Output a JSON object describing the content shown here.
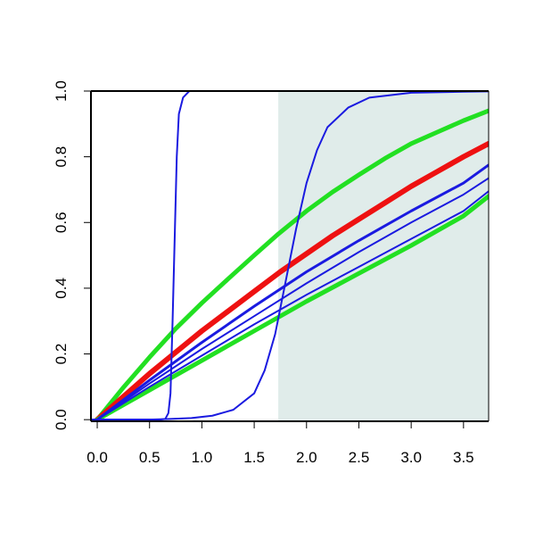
{
  "chart_data": {
    "type": "line",
    "title": "",
    "xlabel": "",
    "ylabel": "",
    "xlim": [
      -0.06,
      3.74
    ],
    "ylim": [
      -0.005,
      1.0
    ],
    "x_ticks": [
      {
        "value": 0.0,
        "label": "0.0"
      },
      {
        "value": 0.5,
        "label": "0.5"
      },
      {
        "value": 1.0,
        "label": "1.0"
      },
      {
        "value": 1.5,
        "label": "1.5"
      },
      {
        "value": 2.0,
        "label": "2.0"
      },
      {
        "value": 2.5,
        "label": "2.5"
      },
      {
        "value": 3.0,
        "label": "3.0"
      },
      {
        "value": 3.5,
        "label": "3.5"
      }
    ],
    "y_ticks": [
      {
        "value": 0.0,
        "label": "0.0"
      },
      {
        "value": 0.2,
        "label": "0.2"
      },
      {
        "value": 0.4,
        "label": "0.4"
      },
      {
        "value": 0.6,
        "label": "0.6"
      },
      {
        "value": 0.8,
        "label": "0.8"
      },
      {
        "value": 1.0,
        "label": "1.0"
      }
    ],
    "grid": false,
    "shaded_region": {
      "x_start": 1.73,
      "x_end": 3.74,
      "color": "#e0ecea"
    },
    "series": [
      {
        "color": "#22e022",
        "width": 5,
        "points": [
          [
            0.0,
            0.0
          ],
          [
            0.25,
            0.098
          ],
          [
            0.5,
            0.19
          ],
          [
            0.75,
            0.277
          ],
          [
            1.0,
            0.355
          ],
          [
            1.25,
            0.428
          ],
          [
            1.5,
            0.5
          ],
          [
            1.73,
            0.565
          ],
          [
            2.0,
            0.635
          ],
          [
            2.25,
            0.693
          ],
          [
            2.5,
            0.745
          ],
          [
            2.75,
            0.795
          ],
          [
            3.0,
            0.84
          ],
          [
            3.25,
            0.875
          ],
          [
            3.5,
            0.91
          ],
          [
            3.74,
            0.94
          ]
        ]
      },
      {
        "color": "#ee1111",
        "width": 6,
        "points": [
          [
            0.0,
            0.0
          ],
          [
            0.25,
            0.07
          ],
          [
            0.5,
            0.14
          ],
          [
            0.75,
            0.205
          ],
          [
            1.0,
            0.27
          ],
          [
            1.25,
            0.33
          ],
          [
            1.5,
            0.39
          ],
          [
            1.75,
            0.45
          ],
          [
            2.0,
            0.505
          ],
          [
            2.25,
            0.56
          ],
          [
            2.5,
            0.61
          ],
          [
            2.75,
            0.66
          ],
          [
            3.0,
            0.71
          ],
          [
            3.25,
            0.755
          ],
          [
            3.5,
            0.8
          ],
          [
            3.74,
            0.84
          ]
        ]
      },
      {
        "color": "#22e022",
        "width": 5,
        "points": [
          [
            0.0,
            0.0
          ],
          [
            0.5,
            0.09
          ],
          [
            1.0,
            0.18
          ],
          [
            1.5,
            0.27
          ],
          [
            2.0,
            0.36
          ],
          [
            2.5,
            0.445
          ],
          [
            3.0,
            0.53
          ],
          [
            3.5,
            0.62
          ],
          [
            3.74,
            0.68
          ]
        ]
      },
      {
        "color": "#1a1ae0",
        "width": 2,
        "points": [
          [
            -0.06,
            0.0
          ],
          [
            0.6,
            0.0
          ],
          [
            0.65,
            0.002
          ],
          [
            0.68,
            0.02
          ],
          [
            0.7,
            0.08
          ],
          [
            0.72,
            0.3
          ],
          [
            0.74,
            0.55
          ],
          [
            0.76,
            0.8
          ],
          [
            0.78,
            0.93
          ],
          [
            0.82,
            0.98
          ],
          [
            0.88,
            1.0
          ],
          [
            1.0,
            1.0
          ],
          [
            3.74,
            1.0
          ]
        ]
      },
      {
        "color": "#1a1ae0",
        "width": 2,
        "points": [
          [
            -0.06,
            0.0
          ],
          [
            0.5,
            0.0
          ],
          [
            0.7,
            0.002
          ],
          [
            0.9,
            0.005
          ],
          [
            1.1,
            0.012
          ],
          [
            1.3,
            0.03
          ],
          [
            1.5,
            0.08
          ],
          [
            1.6,
            0.15
          ],
          [
            1.7,
            0.26
          ],
          [
            1.8,
            0.42
          ],
          [
            1.9,
            0.58
          ],
          [
            2.0,
            0.72
          ],
          [
            2.1,
            0.82
          ],
          [
            2.2,
            0.89
          ],
          [
            2.4,
            0.95
          ],
          [
            2.6,
            0.98
          ],
          [
            3.0,
            0.995
          ],
          [
            3.5,
            0.998
          ],
          [
            3.74,
            0.999
          ]
        ]
      },
      {
        "color": "#1a1ae0",
        "width": 3,
        "points": [
          [
            0.0,
            0.0
          ],
          [
            0.5,
            0.12
          ],
          [
            1.0,
            0.235
          ],
          [
            1.5,
            0.345
          ],
          [
            2.0,
            0.45
          ],
          [
            2.5,
            0.545
          ],
          [
            3.0,
            0.635
          ],
          [
            3.5,
            0.72
          ],
          [
            3.74,
            0.775
          ]
        ]
      },
      {
        "color": "#1a1ae0",
        "width": 2,
        "points": [
          [
            0.0,
            0.0
          ],
          [
            0.5,
            0.11
          ],
          [
            1.0,
            0.215
          ],
          [
            1.5,
            0.315
          ],
          [
            2.0,
            0.415
          ],
          [
            2.5,
            0.51
          ],
          [
            3.0,
            0.6
          ],
          [
            3.5,
            0.685
          ],
          [
            3.74,
            0.735
          ]
        ]
      },
      {
        "color": "#1a1ae0",
        "width": 2,
        "points": [
          [
            0.0,
            0.0
          ],
          [
            0.5,
            0.1
          ],
          [
            1.0,
            0.195
          ],
          [
            1.5,
            0.29
          ],
          [
            2.0,
            0.38
          ],
          [
            2.5,
            0.465
          ],
          [
            3.0,
            0.55
          ],
          [
            3.5,
            0.635
          ],
          [
            3.74,
            0.695
          ]
        ]
      }
    ]
  }
}
